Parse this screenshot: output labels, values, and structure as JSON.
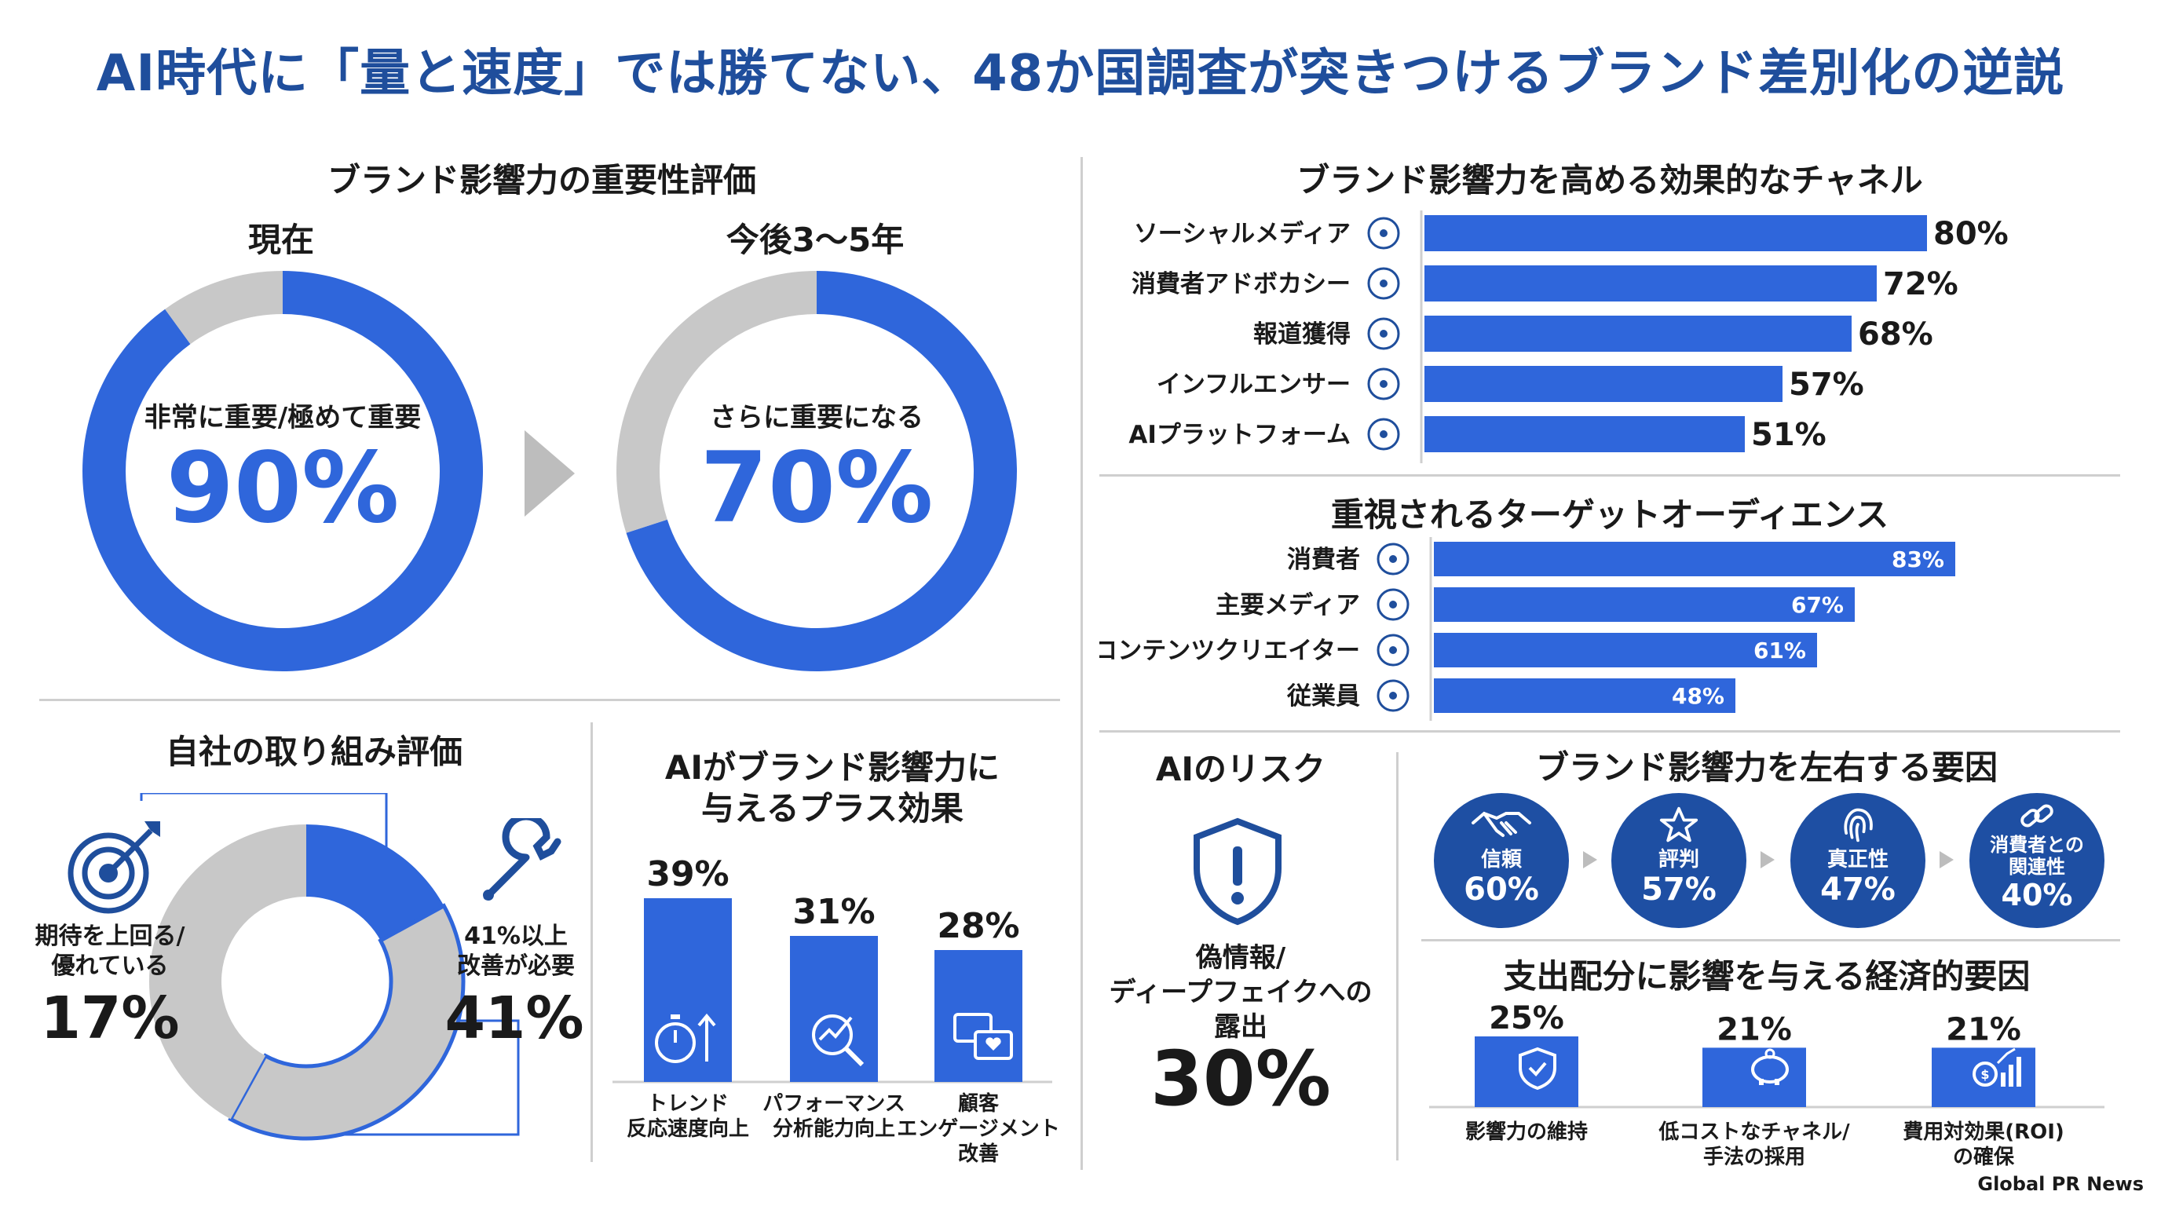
{
  "title": "AI時代に「量と速度」では勝てない、48か国調査が突きつけるブランド差別化の逆説",
  "importance": {
    "heading": "ブランド影響力の重要性評価",
    "current": {
      "label": "現在",
      "caption": "非常に重要/極めて重要",
      "value": "90%"
    },
    "future": {
      "label": "今後3〜5年",
      "caption": "さらに重要になる",
      "value": "70%"
    }
  },
  "self_eval": {
    "heading": "自社の取り組み評価",
    "left_label": "期待を上回る/優れている",
    "left_value": "17%",
    "right_label": "41%以上改善が必要",
    "right_value": "41%"
  },
  "ai_plus": {
    "heading_1": "AIがブランド影響力に",
    "heading_2": "与えるプラス効果"
  },
  "channels": {
    "heading": "ブランド影響力を高める効果的なチャネル"
  },
  "audience": {
    "heading": "重視されるターゲットオーディエンス"
  },
  "ai_risk": {
    "heading": "AIのリスク",
    "caption_1": "偽情報/",
    "caption_2": "ディープフェイクへの",
    "caption_3": "露出",
    "value": "30%"
  },
  "factors": {
    "heading": "ブランド影響力を左右する要因",
    "items": [
      {
        "label": "信頼",
        "value": "60%",
        "icon": "handshake-icon"
      },
      {
        "label": "評判",
        "value": "57%",
        "icon": "star-icon"
      },
      {
        "label": "真正性",
        "value": "47%",
        "icon": "fingerprint-icon"
      },
      {
        "label": "消費者との関連性",
        "label_1": "消費者との",
        "label_2": "関連性",
        "value": "40%",
        "icon": "link-icon"
      }
    ]
  },
  "economic": {
    "heading": "支出配分に影響を与える経済的要因"
  },
  "source": "Global PR News",
  "colors": {
    "accent": "#2f66db",
    "title": "#1f4e9c",
    "gray": "#c8c8c8",
    "circle": "#1e4fa3"
  },
  "chart_data": [
    {
      "type": "pie",
      "title": "現在",
      "categories": [
        "非常に重要/極めて重要",
        "その他"
      ],
      "values": [
        90,
        10
      ]
    },
    {
      "type": "pie",
      "title": "今後3〜5年",
      "categories": [
        "さらに重要になる",
        "その他"
      ],
      "values": [
        70,
        30
      ]
    },
    {
      "type": "pie",
      "title": "自社の取り組み評価",
      "categories": [
        "期待を上回る/優れている",
        "41%以上改善が必要",
        "その他"
      ],
      "values": [
        17,
        41,
        42
      ]
    },
    {
      "type": "bar",
      "title": "AIがブランド影響力に与えるプラス効果",
      "categories": [
        "トレンド反応速度向上",
        "パフォーマンス分析能力向上",
        "顧客エンゲージメント改善"
      ],
      "label_lines": [
        [
          "トレンド",
          "反応速度向上"
        ],
        [
          "パフォーマンス",
          "分析能力向上"
        ],
        [
          "顧客",
          "エンゲージメント",
          "改善"
        ]
      ],
      "values": [
        39,
        31,
        28
      ],
      "ylim": [
        0,
        45
      ]
    },
    {
      "type": "bar",
      "title": "ブランド影響力を高める効果的なチャネル",
      "orientation": "horizontal",
      "categories": [
        "ソーシャルメディア",
        "消費者アドボカシー",
        "報道獲得",
        "インフルエンサー",
        "AIプラットフォーム"
      ],
      "values": [
        80,
        72,
        68,
        57,
        51
      ],
      "xlim": [
        0,
        100
      ]
    },
    {
      "type": "bar",
      "title": "重視されるターゲットオーディエンス",
      "orientation": "horizontal",
      "categories": [
        "消費者",
        "主要メディア",
        "コンテンツクリエイター",
        "従業員"
      ],
      "values": [
        83,
        67,
        61,
        48
      ],
      "xlim": [
        0,
        100
      ]
    },
    {
      "type": "bar",
      "title": "支出配分に影響を与える経済的要因",
      "categories": [
        "影響力の維持",
        "低コストなチャネル/手法の採用",
        "費用対効果(ROI)の確保"
      ],
      "label_lines": [
        [
          "影響力の維持"
        ],
        [
          "低コストなチャネル/",
          "手法の採用"
        ],
        [
          "費用対効果(ROI)",
          "の確保"
        ]
      ],
      "values": [
        25,
        21,
        21
      ],
      "ylim": [
        0,
        50
      ]
    }
  ]
}
